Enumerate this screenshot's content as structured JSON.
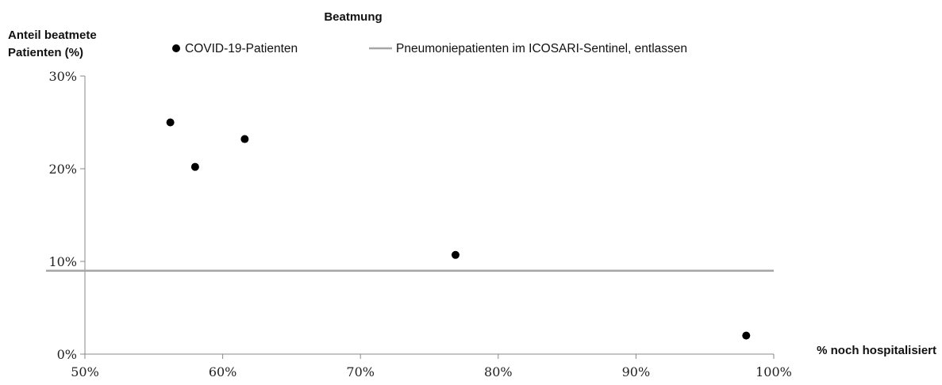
{
  "chart_data": {
    "type": "scatter",
    "title": "Beatmung",
    "ylabel_lines": [
      "Anteil beatmete",
      "Patienten (%)"
    ],
    "xlabel": "% noch hospitalisiert",
    "xlim": [
      50,
      100
    ],
    "ylim": [
      0,
      30
    ],
    "x_ticks": [
      50,
      60,
      70,
      80,
      90,
      100
    ],
    "x_tick_labels": [
      "50%",
      "60%",
      "70%",
      "80%",
      "90%",
      "100%"
    ],
    "y_ticks": [
      0,
      10,
      20,
      30
    ],
    "y_tick_labels": [
      "0%",
      "10%",
      "20%",
      "30%"
    ],
    "grid": false,
    "legend": {
      "placement": "top"
    },
    "series": [
      {
        "name": "COVID-19-Patienten",
        "kind": "scatter",
        "color": "#000000",
        "points": [
          {
            "x": 56.2,
            "y": 25.0
          },
          {
            "x": 58.0,
            "y": 20.2
          },
          {
            "x": 61.6,
            "y": 23.2
          },
          {
            "x": 76.9,
            "y": 10.7
          },
          {
            "x": 98.0,
            "y": 2.0
          }
        ]
      },
      {
        "name": "Pneumoniepatienten im ICOSARI-Sentinel, entlassen",
        "kind": "reference-line",
        "color": "#a6a6a6",
        "y": 9.0
      }
    ]
  }
}
